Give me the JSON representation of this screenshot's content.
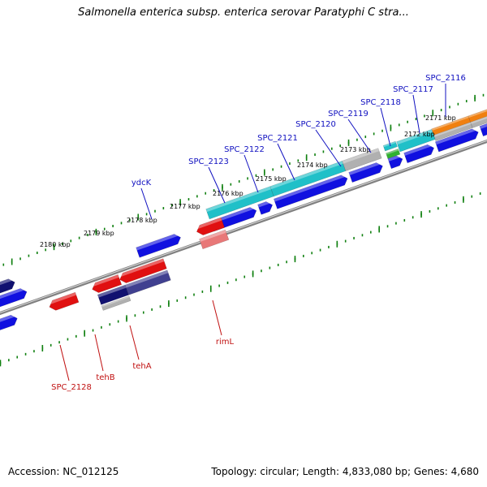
{
  "title": "Salmonella enterica subsp. enterica serovar Paratyphi C stra...",
  "footer": {
    "accession": "Accession: NC_012125",
    "stats": "Topology: circular; Length: 4,833,080 bp; Genes: 4,680"
  },
  "kbp_labels": [
    "2171 kbp",
    "2172 kbp",
    "2173 kbp",
    "2174 kbp",
    "2175 kbp",
    "2176 kbp",
    "2177 kbp",
    "2178 kbp",
    "2179 kbp",
    "2180 kbp"
  ],
  "genes_forward": [
    "SPC_2116",
    "SPC_2117",
    "SPC_2118",
    "SPC_2119",
    "SPC_2120",
    "SPC_2121",
    "SPC_2122",
    "SPC_2123",
    "ydcK"
  ],
  "genes_reverse": [
    "SPC_2128",
    "tehB",
    "tehA",
    "rimL"
  ],
  "colors": {
    "forward_cds": "#1010e0",
    "reverse_cds": "#e01010",
    "reverse_light": "#e87878",
    "navy": "#101070",
    "slate": "#404090",
    "cyan": "#20c0c8",
    "orange": "#f08010",
    "gray": "#b0b0b0",
    "green": "#30b030",
    "tick_green": "#108010",
    "backbone": "#808080",
    "forward_label": "#1010c0",
    "reverse_label": "#c01010"
  }
}
